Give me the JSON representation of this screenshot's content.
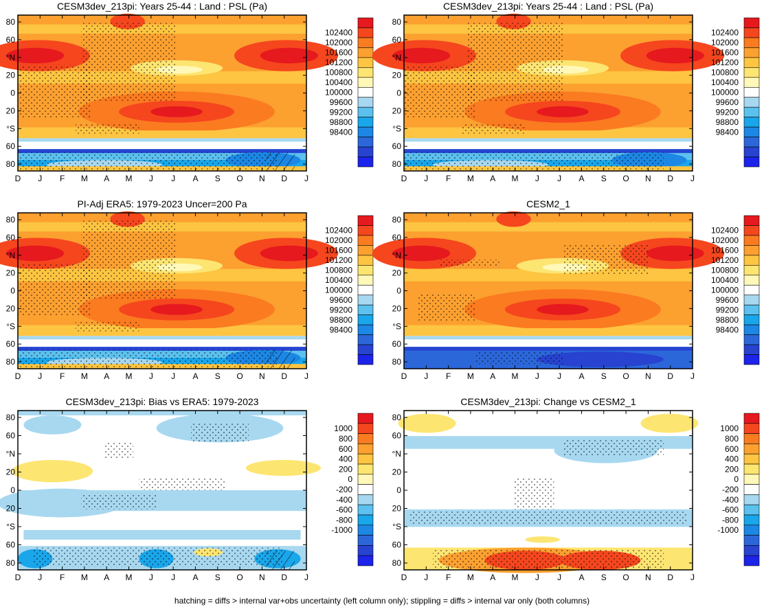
{
  "footer": "hatching = diffs > internal var+obs uncertainty (left column only); stippling = diffs > internal var only (both columns)",
  "chart_data": [
    {
      "type": "heatmap",
      "title": "CESM3dev_213pi: Years 25-44 : Land : PSL (Pa)",
      "x_ticks": [
        "D",
        "J",
        "F",
        "M",
        "A",
        "M",
        "J",
        "J",
        "A",
        "S",
        "O",
        "N",
        "D",
        "J"
      ],
      "y_ticks": [
        "80",
        "60",
        "°N",
        "20",
        "0",
        "20",
        "°S",
        "60",
        "80"
      ],
      "colorbar": [
        "102400",
        "102000",
        "101600",
        "101200",
        "100800",
        "100400",
        "100000",
        "99600",
        "99200",
        "98800",
        "98400"
      ],
      "colors": [
        "#e6191e",
        "#f5461e",
        "#fb7b20",
        "#fca030",
        "#fdc541",
        "#fde572",
        "#fff8b8",
        "#ffffff",
        "#a7d8f0",
        "#5cc1ee",
        "#1aa6ea",
        "#1c87e4",
        "#2c67da",
        "#2743d0",
        "#1c23ea"
      ]
    },
    {
      "type": "heatmap",
      "title": "CESM3dev_213pi: Years 25-44 : Land : PSL (Pa)",
      "x_ticks": [
        "D",
        "J",
        "F",
        "M",
        "A",
        "M",
        "J",
        "J",
        "A",
        "S",
        "O",
        "N",
        "D",
        "J"
      ],
      "y_ticks": [
        "80",
        "60",
        "°N",
        "20",
        "0",
        "20",
        "°S",
        "60",
        "80"
      ],
      "colorbar": [
        "102400",
        "102000",
        "101600",
        "101200",
        "100800",
        "100400",
        "100000",
        "99600",
        "99200",
        "98800",
        "98400"
      ],
      "colors": [
        "#e6191e",
        "#f5461e",
        "#fb7b20",
        "#fca030",
        "#fdc541",
        "#fde572",
        "#fff8b8",
        "#ffffff",
        "#a7d8f0",
        "#5cc1ee",
        "#1aa6ea",
        "#1c87e4",
        "#2c67da",
        "#2743d0",
        "#1c23ea"
      ]
    },
    {
      "type": "heatmap",
      "title": "PI-Adj ERA5: 1979-2023 Uncer=200 Pa",
      "x_ticks": [
        "D",
        "J",
        "F",
        "M",
        "A",
        "M",
        "J",
        "J",
        "A",
        "S",
        "O",
        "N",
        "D",
        "J"
      ],
      "y_ticks": [
        "80",
        "60",
        "°N",
        "20",
        "0",
        "20",
        "°S",
        "60",
        "80"
      ],
      "colorbar": [
        "102400",
        "102000",
        "101600",
        "101200",
        "100800",
        "100400",
        "100000",
        "99600",
        "99200",
        "98800",
        "98400"
      ],
      "colors": [
        "#e6191e",
        "#f5461e",
        "#fb7b20",
        "#fca030",
        "#fdc541",
        "#fde572",
        "#fff8b8",
        "#ffffff",
        "#a7d8f0",
        "#5cc1ee",
        "#1aa6ea",
        "#1c87e4",
        "#2c67da",
        "#2743d0",
        "#1c23ea"
      ]
    },
    {
      "type": "heatmap",
      "title": "CESM2_1",
      "x_ticks": [
        "D",
        "J",
        "F",
        "M",
        "A",
        "M",
        "J",
        "J",
        "A",
        "S",
        "O",
        "N",
        "D",
        "J"
      ],
      "y_ticks": [
        "80",
        "60",
        "°N",
        "20",
        "0",
        "20",
        "°S",
        "60",
        "80"
      ],
      "colorbar": [
        "102400",
        "102000",
        "101600",
        "101200",
        "100800",
        "100400",
        "100000",
        "99600",
        "99200",
        "98800",
        "98400"
      ],
      "colors": [
        "#e6191e",
        "#f5461e",
        "#fb7b20",
        "#fca030",
        "#fdc541",
        "#fde572",
        "#fff8b8",
        "#ffffff",
        "#a7d8f0",
        "#5cc1ee",
        "#1aa6ea",
        "#1c87e4",
        "#2c67da",
        "#2743d0",
        "#1c23ea"
      ]
    },
    {
      "type": "heatmap",
      "title": "CESM3dev_213pi: Bias vs ERA5: 1979-2023",
      "x_ticks": [
        "D",
        "J",
        "F",
        "M",
        "A",
        "M",
        "J",
        "J",
        "A",
        "S",
        "O",
        "N",
        "D",
        "J"
      ],
      "y_ticks": [
        "80",
        "60",
        "°N",
        "20",
        "0",
        "20",
        "°S",
        "60",
        "80"
      ],
      "colorbar": [
        "1000",
        "800",
        "600",
        "400",
        "200",
        "0",
        "-200",
        "-400",
        "-600",
        "-800",
        "-1000"
      ],
      "colors": [
        "#e6191e",
        "#f5461e",
        "#fb7b20",
        "#fca030",
        "#fdc541",
        "#fde572",
        "#fff8b8",
        "#ffffff",
        "#a7d8f0",
        "#5cc1ee",
        "#1aa6ea",
        "#1c87e4",
        "#2c67da",
        "#2743d0",
        "#1c23ea"
      ]
    },
    {
      "type": "heatmap",
      "title": "CESM3dev_213pi: Change vs CESM2_1",
      "x_ticks": [
        "D",
        "J",
        "F",
        "M",
        "A",
        "M",
        "J",
        "J",
        "A",
        "S",
        "O",
        "N",
        "D",
        "J"
      ],
      "y_ticks": [
        "80",
        "60",
        "°N",
        "20",
        "0",
        "20",
        "°S",
        "60",
        "80"
      ],
      "colorbar": [
        "1000",
        "800",
        "600",
        "400",
        "200",
        "0",
        "-200",
        "-400",
        "-600",
        "-800",
        "-1000"
      ],
      "colors": [
        "#e6191e",
        "#f5461e",
        "#fb7b20",
        "#fca030",
        "#fdc541",
        "#fde572",
        "#fff8b8",
        "#ffffff",
        "#a7d8f0",
        "#5cc1ee",
        "#1aa6ea",
        "#1c87e4",
        "#2c67da",
        "#2743d0",
        "#1c23ea"
      ]
    }
  ]
}
